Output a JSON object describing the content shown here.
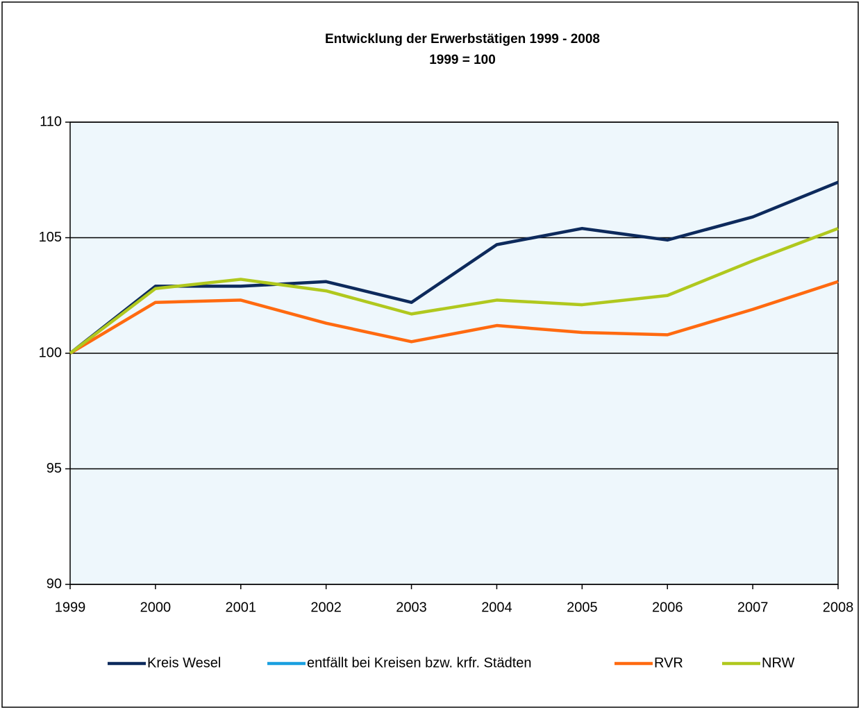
{
  "chart_data": {
    "type": "line",
    "title": "Entwicklung der Erwerbstätigen 1999 - 2008",
    "subtitle": "1999 = 100",
    "categories": [
      "1999",
      "2000",
      "2001",
      "2002",
      "2003",
      "2004",
      "2005",
      "2006",
      "2007",
      "2008"
    ],
    "series": [
      {
        "name": "Kreis Wesel",
        "color": "#0d2a5c",
        "values": [
          100,
          102.9,
          102.9,
          103.1,
          102.2,
          104.7,
          105.4,
          104.9,
          105.9,
          107.4
        ]
      },
      {
        "name": "entfällt bei Kreisen bzw. krfr. Städten",
        "color": "#1aa0e0",
        "values": [
          null,
          null,
          null,
          null,
          null,
          null,
          null,
          null,
          null,
          null
        ]
      },
      {
        "name": "RVR",
        "color": "#ff6a10",
        "values": [
          100,
          102.2,
          102.3,
          101.3,
          100.5,
          101.2,
          100.9,
          100.8,
          101.9,
          103.1
        ]
      },
      {
        "name": "NRW",
        "color": "#b0c81e",
        "values": [
          100,
          102.8,
          103.2,
          102.7,
          101.7,
          102.3,
          102.1,
          102.5,
          104.0,
          105.4
        ]
      }
    ],
    "ylim": [
      90,
      110
    ],
    "yticks": [
      90,
      95,
      100,
      105,
      110
    ],
    "grid": true,
    "legend": "bottom"
  }
}
